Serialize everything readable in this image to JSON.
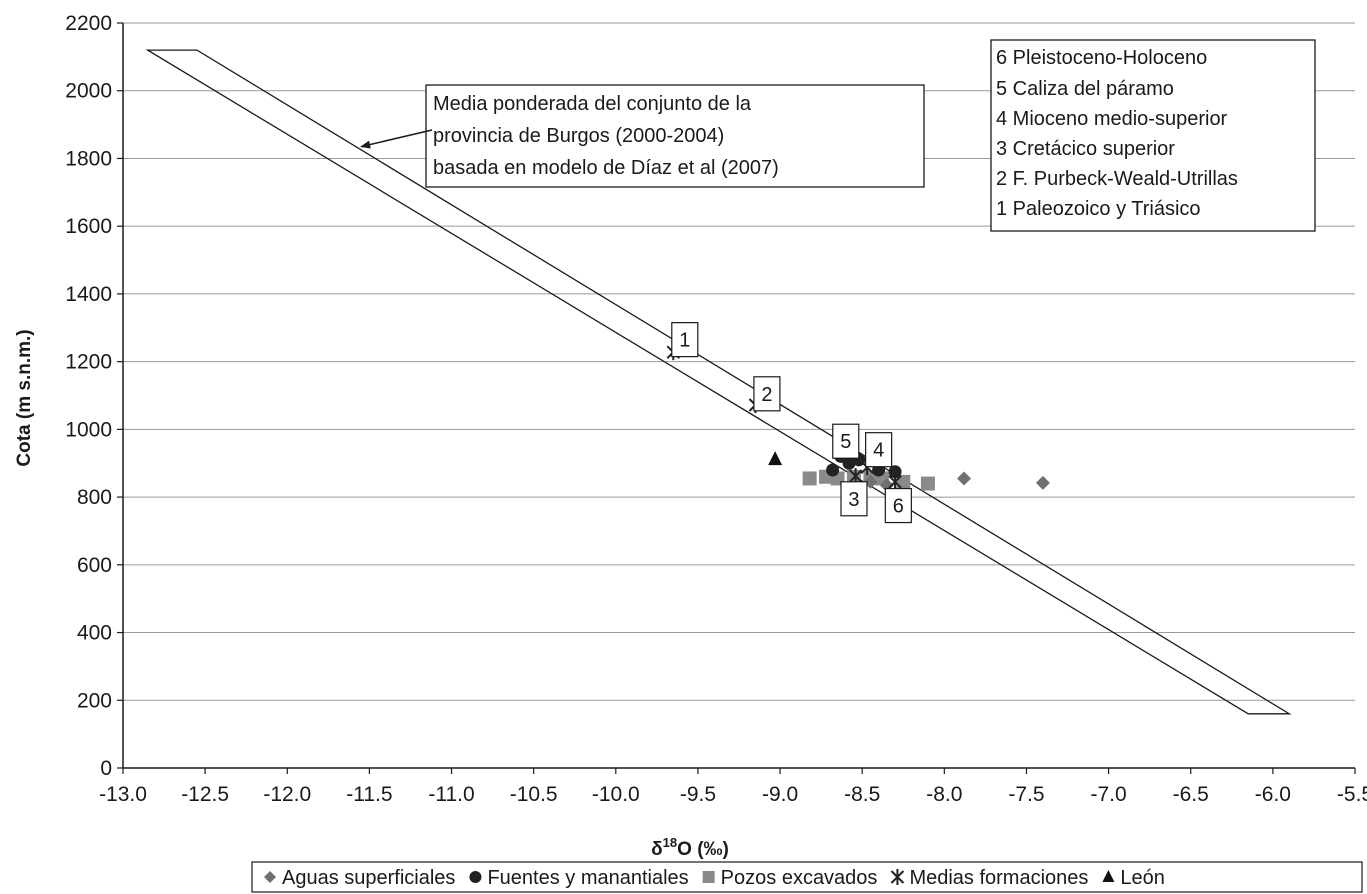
{
  "chart_data": {
    "type": "scatter",
    "xlabel": {
      "base": "δ",
      "sup": "18",
      "rest": "O (‰)"
    },
    "ylabel": "Cota (m s.n.m.)",
    "xlim": [
      -13.0,
      -5.5
    ],
    "ylim": [
      0,
      2200
    ],
    "x_ticks": [
      "-13.0",
      "-12.5",
      "-12.0",
      "-11.5",
      "-11.0",
      "-10.5",
      "-10.0",
      "-9.5",
      "-9.0",
      "-8.5",
      "-8.0",
      "-7.5",
      "-7.0",
      "-6.5",
      "-6.0",
      "-5.5"
    ],
    "y_ticks": [
      "0",
      "200",
      "400",
      "600",
      "800",
      "1000",
      "1200",
      "1400",
      "1600",
      "1800",
      "2000",
      "2200"
    ],
    "grid": "horizontal",
    "band": {
      "upper_line": [
        [
          -12.55,
          2120
        ],
        [
          -5.9,
          160
        ]
      ],
      "lower_line": [
        [
          -12.85,
          2120
        ],
        [
          -6.15,
          160
        ]
      ],
      "top_y": 2120,
      "bottom_y": 160
    },
    "series": [
      {
        "name": "Aguas superficiales",
        "marker": "diamond",
        "color": "#707070",
        "points": [
          [
            -7.88,
            855
          ],
          [
            -7.4,
            842
          ],
          [
            -8.45,
            845
          ],
          [
            -8.35,
            835
          ]
        ]
      },
      {
        "name": "Fuentes y manantiales",
        "marker": "circle",
        "color": "#222222",
        "points": [
          [
            -8.68,
            880
          ],
          [
            -8.63,
            920
          ],
          [
            -8.58,
            900
          ],
          [
            -8.52,
            910
          ],
          [
            -8.44,
            920
          ],
          [
            -8.4,
            880
          ],
          [
            -8.3,
            875
          ]
        ]
      },
      {
        "name": "Pozos excavados",
        "marker": "square",
        "color": "#8a8a8a",
        "points": [
          [
            -8.82,
            855
          ],
          [
            -8.72,
            860
          ],
          [
            -8.65,
            855
          ],
          [
            -8.55,
            860
          ],
          [
            -8.45,
            858
          ],
          [
            -8.38,
            855
          ],
          [
            -8.25,
            845
          ],
          [
            -8.1,
            840
          ]
        ]
      },
      {
        "name": "Medias formaciones",
        "marker": "asterisk",
        "color": "#222222",
        "points": [
          [
            -9.65,
            1228
          ],
          [
            -9.15,
            1072
          ],
          [
            -8.56,
            910
          ],
          [
            -8.54,
            862
          ],
          [
            -8.47,
            888
          ],
          [
            -8.3,
            845
          ]
        ]
      },
      {
        "name": "León",
        "marker": "triangle",
        "color": "#111111",
        "points": [
          [
            -9.03,
            912
          ]
        ]
      }
    ],
    "point_labels": [
      {
        "text": "1",
        "x": -9.58,
        "y": 1265
      },
      {
        "text": "2",
        "x": -9.08,
        "y": 1105
      },
      {
        "text": "5",
        "x": -8.6,
        "y": 965
      },
      {
        "text": "4",
        "x": -8.4,
        "y": 940
      },
      {
        "text": "3",
        "x": -8.55,
        "y": 795
      },
      {
        "text": "6",
        "x": -8.28,
        "y": 775
      }
    ],
    "annotation": {
      "lines": [
        "Media ponderada del conjunto de la",
        "provincia de Burgos (2000-2004)",
        "basada en modelo de Díaz et al (2007)"
      ],
      "arrow_target": [
        -11.55,
        1835
      ]
    },
    "formations_key": [
      "6 Pleistoceno-Holoceno",
      "5 Caliza del páramo",
      "4 Mioceno medio-superior",
      "3 Cretácico superior",
      "2 F. Purbeck-Weald-Utrillas",
      "1 Paleozoico y Triásico"
    ],
    "legend_position": "bottom"
  }
}
